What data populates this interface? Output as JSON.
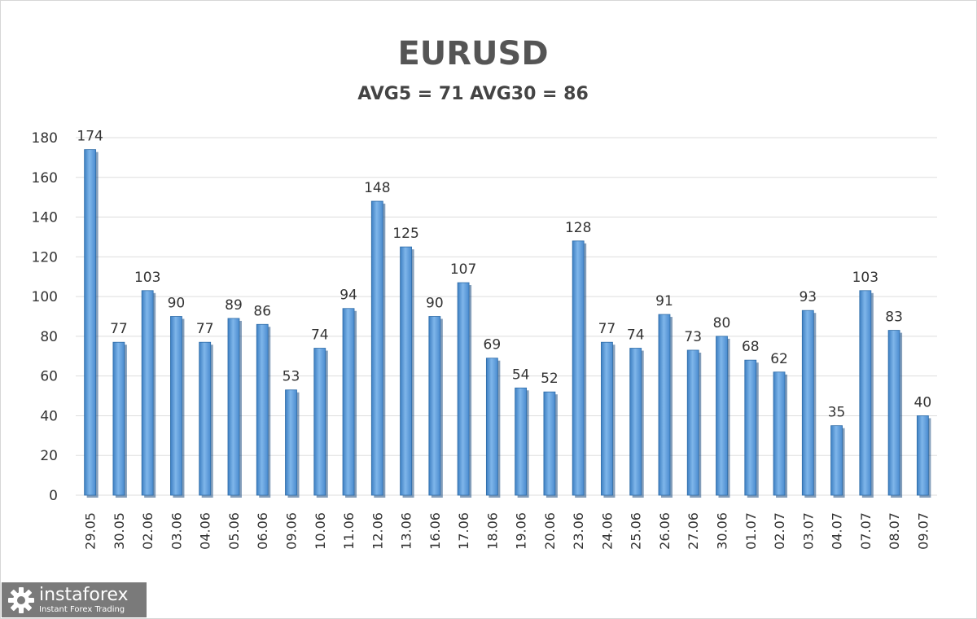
{
  "chart_data": {
    "type": "bar",
    "title": "EURUSD",
    "subtitle": "AVG5 = 71 AVG30 = 86",
    "categories": [
      "29.05",
      "30.05",
      "02.06",
      "03.06",
      "04.06",
      "05.06",
      "06.06",
      "09.06",
      "10.06",
      "11.06",
      "12.06",
      "13.06",
      "16.06",
      "17.06",
      "18.06",
      "19.06",
      "20.06",
      "23.06",
      "24.06",
      "25.06",
      "26.06",
      "27.06",
      "30.06",
      "01.07",
      "02.07",
      "03.07",
      "04.07",
      "07.07",
      "08.07",
      "09.07"
    ],
    "values": [
      174,
      77,
      103,
      90,
      77,
      89,
      86,
      53,
      74,
      94,
      148,
      125,
      90,
      107,
      69,
      54,
      52,
      128,
      77,
      74,
      91,
      73,
      80,
      68,
      62,
      93,
      35,
      103,
      83,
      40
    ],
    "ylim": [
      0,
      180
    ],
    "yticks": [
      0,
      20,
      40,
      60,
      80,
      100,
      120,
      140,
      160,
      180
    ],
    "grid": true,
    "data_labels": true,
    "bar_color": "#5b9bd5",
    "bar_dark": "#2e6ca8"
  },
  "logo": {
    "name": "instaforex",
    "tagline": "Instant Forex Trading",
    "icon": "gear-icon"
  }
}
